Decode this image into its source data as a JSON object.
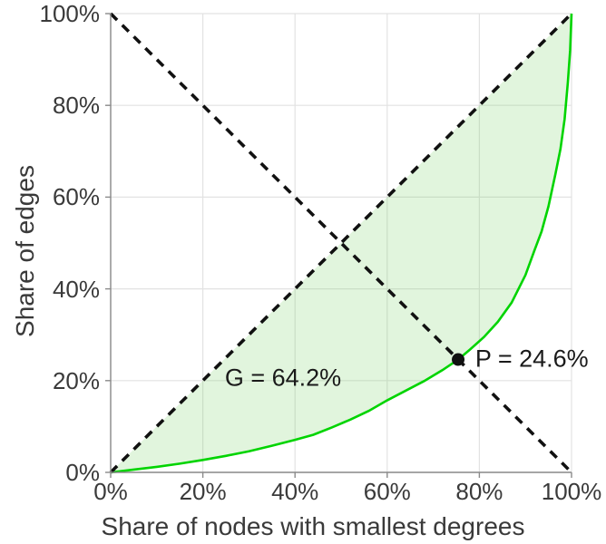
{
  "figure": {
    "background": "#ffffff"
  },
  "chart_data": {
    "type": "line",
    "title": "",
    "xlabel": "Share of nodes with smallest degrees",
    "ylabel": "Share of edges",
    "xlim": [
      0,
      100
    ],
    "ylim": [
      0,
      100
    ],
    "grid": true,
    "grid_color": "#e2e2e2",
    "axis_color": "#8a8a8a",
    "tick_text_color": "#3a3a3a",
    "annotation_text_color": "#1a1a1a",
    "x_tick_values": [
      0,
      20,
      40,
      60,
      80,
      100
    ],
    "x_tick_labels": [
      "0%",
      "20%",
      "40%",
      "60%",
      "80%",
      "100%"
    ],
    "y_tick_values": [
      0,
      20,
      40,
      60,
      80,
      100
    ],
    "y_tick_labels": [
      "0%",
      "20%",
      "40%",
      "60%",
      "80%",
      "100%"
    ],
    "series": [
      {
        "name": "lorenz-curve",
        "style": "solid",
        "color": "#00d400",
        "width": 2.6,
        "x": [
          0,
          5,
          10,
          15,
          20,
          25,
          30,
          35,
          40,
          44,
          48,
          52,
          56,
          60,
          64,
          68,
          72,
          75.4,
          78,
          81,
          84,
          87,
          90,
          92,
          93.5,
          95,
          96.5,
          97.6,
          98.5,
          99.2,
          99.7,
          100
        ],
        "y": [
          0,
          0.6,
          1.2,
          1.9,
          2.7,
          3.6,
          4.6,
          5.8,
          7.1,
          8.2,
          9.8,
          11.5,
          13.4,
          15.7,
          17.8,
          19.9,
          22.3,
          24.6,
          26.8,
          29.5,
          32.8,
          37,
          43,
          48.5,
          52.5,
          58,
          65,
          70.5,
          77,
          85,
          92,
          100
        ]
      },
      {
        "name": "equality-diagonal",
        "style": "dashed",
        "color": "#111111",
        "width": 3.6,
        "x": [
          0,
          100
        ],
        "y": [
          0,
          100
        ]
      },
      {
        "name": "anti-diagonal",
        "style": "dashed",
        "color": "#111111",
        "width": 3.6,
        "x": [
          0,
          100
        ],
        "y": [
          100,
          0
        ]
      }
    ],
    "fill_between": {
      "between": [
        "equality-diagonal",
        "lorenz-curve"
      ],
      "color": "rgba(120, 210, 100, 0.22)"
    },
    "marker": {
      "x": 75.4,
      "y": 24.6,
      "radius": 7,
      "color": "#111111"
    },
    "annotations": {
      "gini": {
        "text": "G = 64.2%",
        "x": 37.4,
        "y": 20.6,
        "anchor": "middle"
      },
      "p": {
        "text": "P = 24.6%",
        "x": 79.1,
        "y": 24.7,
        "anchor": "start"
      }
    }
  }
}
